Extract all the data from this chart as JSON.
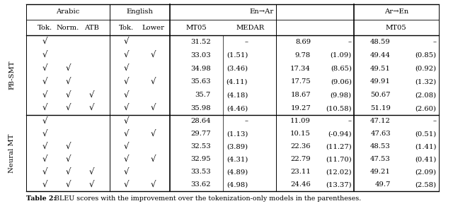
{
  "pbsmt_rows": [
    {
      "ar_tok": true,
      "ar_norm": false,
      "ar_atb": false,
      "en_tok": true,
      "en_lower": false,
      "en_mt05": "31.52",
      "en_mt05_imp": "–",
      "medar": "8.69",
      "medar_imp": "–",
      "ar_mt05": "48.59",
      "ar_mt05_imp": "–"
    },
    {
      "ar_tok": true,
      "ar_norm": false,
      "ar_atb": false,
      "en_tok": true,
      "en_lower": true,
      "en_mt05": "33.03",
      "en_mt05_imp": "(1.51)",
      "medar": "9.78",
      "medar_imp": "(1.09)",
      "ar_mt05": "49.44",
      "ar_mt05_imp": "(0.85)"
    },
    {
      "ar_tok": true,
      "ar_norm": true,
      "ar_atb": false,
      "en_tok": true,
      "en_lower": false,
      "en_mt05": "34.98",
      "en_mt05_imp": "(3.46)",
      "medar": "17.34",
      "medar_imp": "(8.65)",
      "ar_mt05": "49.51",
      "ar_mt05_imp": "(0.92)"
    },
    {
      "ar_tok": true,
      "ar_norm": true,
      "ar_atb": false,
      "en_tok": true,
      "en_lower": true,
      "en_mt05": "35.63",
      "en_mt05_imp": "(4.11)",
      "medar": "17.75",
      "medar_imp": "(9.06)",
      "ar_mt05": "49.91",
      "ar_mt05_imp": "(1.32)"
    },
    {
      "ar_tok": true,
      "ar_norm": true,
      "ar_atb": true,
      "en_tok": true,
      "en_lower": false,
      "en_mt05": "35.7",
      "en_mt05_imp": "(4.18)",
      "medar": "18.67",
      "medar_imp": "(9.98)",
      "ar_mt05": "50.67",
      "ar_mt05_imp": "(2.08)"
    },
    {
      "ar_tok": true,
      "ar_norm": true,
      "ar_atb": true,
      "en_tok": true,
      "en_lower": true,
      "en_mt05": "35.98",
      "en_mt05_imp": "(4.46)",
      "medar": "19.27",
      "medar_imp": "(10.58)",
      "ar_mt05": "51.19",
      "ar_mt05_imp": "(2.60)"
    }
  ],
  "neural_rows": [
    {
      "ar_tok": true,
      "ar_norm": false,
      "ar_atb": false,
      "en_tok": true,
      "en_lower": false,
      "en_mt05": "28.64",
      "en_mt05_imp": "–",
      "medar": "11.09",
      "medar_imp": "–",
      "ar_mt05": "47.12",
      "ar_mt05_imp": "–"
    },
    {
      "ar_tok": true,
      "ar_norm": false,
      "ar_atb": false,
      "en_tok": true,
      "en_lower": true,
      "en_mt05": "29.77",
      "en_mt05_imp": "(1.13)",
      "medar": "10.15",
      "medar_imp": "(-0.94)",
      "ar_mt05": "47.63",
      "ar_mt05_imp": "(0.51)"
    },
    {
      "ar_tok": true,
      "ar_norm": true,
      "ar_atb": false,
      "en_tok": true,
      "en_lower": false,
      "en_mt05": "32.53",
      "en_mt05_imp": "(3.89)",
      "medar": "22.36",
      "medar_imp": "(11.27)",
      "ar_mt05": "48.53",
      "ar_mt05_imp": "(1.41)"
    },
    {
      "ar_tok": true,
      "ar_norm": true,
      "ar_atb": false,
      "en_tok": true,
      "en_lower": true,
      "en_mt05": "32.95",
      "en_mt05_imp": "(4.31)",
      "medar": "22.79",
      "medar_imp": "(11.70)",
      "ar_mt05": "47.53",
      "ar_mt05_imp": "(0.41)"
    },
    {
      "ar_tok": true,
      "ar_norm": true,
      "ar_atb": true,
      "en_tok": true,
      "en_lower": false,
      "en_mt05": "33.53",
      "en_mt05_imp": "(4.89)",
      "medar": "23.11",
      "medar_imp": "(12.02)",
      "ar_mt05": "49.21",
      "ar_mt05_imp": "(2.09)"
    },
    {
      "ar_tok": true,
      "ar_norm": true,
      "ar_atb": true,
      "en_tok": true,
      "en_lower": true,
      "en_mt05": "33.62",
      "en_mt05_imp": "(4.98)",
      "medar": "24.46",
      "medar_imp": "(13.37)",
      "ar_mt05": "49.7",
      "ar_mt05_imp": "(2.58)"
    }
  ],
  "bg_color": "#ffffff",
  "text_color": "#000000",
  "check": "√",
  "caption_bold": "Table 2:",
  "caption_rest": " BLEU scores with the improvement over the tokenization-only models in the parentheses.",
  "pbsmt_label": "PB-SMT",
  "neural_label": "Neural MT",
  "h1_arabic": "Arabic",
  "h1_english": "English",
  "h1_enar": "En→Ar",
  "h1_aren": "Ar→En",
  "h2_tok1": "Tok.",
  "h2_norm": "Norm.",
  "h2_atb": "ATB",
  "h2_tok2": "Tok.",
  "h2_lower": "Lower",
  "h2_mt05a": "MT05",
  "h2_medar": "MEDAR",
  "h2_mt05b": "MT05",
  "fs": 7.2,
  "fs_check": 8.5,
  "fs_caption": 6.8
}
